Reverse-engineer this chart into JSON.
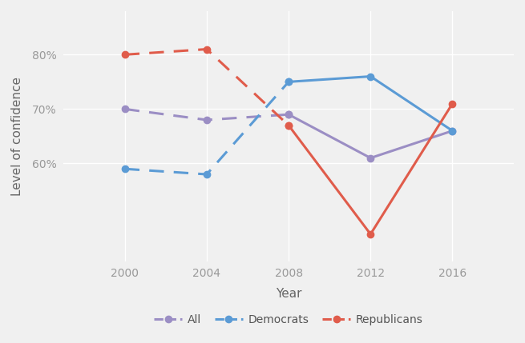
{
  "years": [
    2000,
    2004,
    2008,
    2012,
    2016
  ],
  "x_ticks": [
    2000,
    2004,
    2008,
    2012,
    2016
  ],
  "all_values": [
    70,
    68,
    69,
    61,
    66
  ],
  "democrats_values": [
    59,
    58,
    75,
    76,
    66
  ],
  "republicans_values": [
    80,
    81,
    67,
    47,
    71
  ],
  "all_color": "#9b8ec4",
  "democrats_color": "#5b9bd5",
  "republicans_color": "#e05c4b",
  "background_color": "#f0f0f0",
  "grid_color": "#ffffff",
  "xlabel": "Year",
  "ylabel": "Level of confidence",
  "yticks": [
    60,
    70,
    80
  ],
  "ylim": [
    42,
    88
  ],
  "xlim": [
    1997,
    2019
  ],
  "dashed_cutoff_index": 2,
  "legend_labels": [
    "All",
    "Democrats",
    "Republicans"
  ],
  "marker": "o",
  "markersize": 6,
  "linewidth": 2.2,
  "dash_pattern": [
    6,
    4
  ]
}
